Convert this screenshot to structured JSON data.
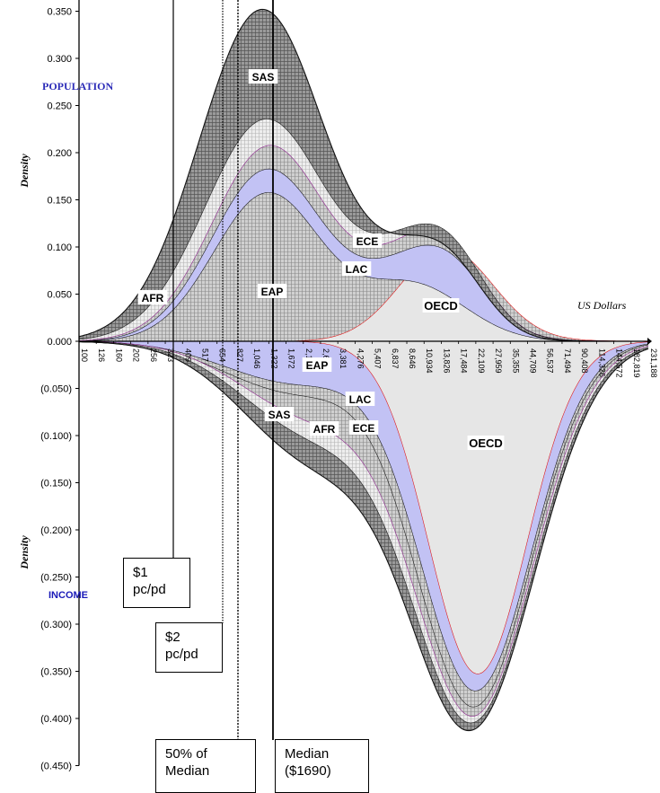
{
  "chart_data": {
    "type": "area",
    "y_axis_label": "Density",
    "top_panel_title": "POPULATION",
    "bottom_panel_title": "INCOME",
    "x_axis_label": "US Dollars",
    "y_ticks": [
      "0.350",
      "0.300",
      "0.250",
      "0.200",
      "0.150",
      "0.100",
      "0.050",
      "0.000",
      "(0.050)",
      "(0.100)",
      "(0.150)",
      "(0.200)",
      "(0.250)",
      "(0.300)",
      "(0.350)",
      "(0.400)",
      "(0.450)"
    ],
    "ylim": [
      -0.45,
      0.35
    ],
    "x_ticks": [
      "100",
      "126",
      "160",
      "202",
      "256",
      "323",
      "409",
      "517",
      "654",
      "827",
      "1,046",
      "1,322",
      "1,672",
      "2,114",
      "2,674",
      "3,381",
      "4,276",
      "5,407",
      "6,837",
      "8,646",
      "10,934",
      "13,826",
      "17,484",
      "22,109",
      "27,959",
      "35,355",
      "44,709",
      "56,537",
      "71,494",
      "90,408",
      "114,326",
      "144,572",
      "182,819",
      "231,188"
    ],
    "population_series": [
      {
        "name": "OECD",
        "peak_density": 0.098,
        "peak_at": "17,484"
      },
      {
        "name": "EAP",
        "peak_density": 0.158,
        "peak_at": "1,322"
      },
      {
        "name": "LAC",
        "peak_density": 0.183,
        "peak_at": "1,322"
      },
      {
        "name": "ECE",
        "peak_density": 0.208,
        "peak_at": "1,322"
      },
      {
        "name": "AFR",
        "peak_density": 0.236,
        "peak_at": "1,322"
      },
      {
        "name": "SAS",
        "peak_density": 0.352,
        "peak_at": "1,322"
      }
    ],
    "income_series": [
      {
        "name": "OECD",
        "peak_density": -0.353,
        "peak_at": "22,109"
      },
      {
        "name": "LAC",
        "peak_density": -0.371,
        "peak_at": "22,109"
      },
      {
        "name": "EAP",
        "peak_density": -0.388,
        "peak_at": "22,109"
      },
      {
        "name": "ECE",
        "peak_density": -0.398,
        "peak_at": "22,109"
      },
      {
        "name": "AFR",
        "peak_density": -0.405,
        "peak_at": "22,109"
      },
      {
        "name": "SAS",
        "peak_density": -0.413,
        "peak_at": "22,109"
      }
    ],
    "reference_lines": [
      {
        "label": "$1\npc/pd",
        "value": "409"
      },
      {
        "label": "$2\npc/pd",
        "value": "827"
      },
      {
        "label": "50% of\nMedian",
        "value": "845"
      },
      {
        "label": "Median\n($1690)",
        "value": "1690"
      }
    ],
    "colors": {
      "oecd": "#e6e6e6",
      "lac": "#c2c2f4",
      "grid_dark": "#8a8a8a",
      "grid_light": "#d4d4d4",
      "oecd_line": "#e01010",
      "ece_line": "#8a1a8a",
      "title_blue": "#2d2db8"
    }
  }
}
